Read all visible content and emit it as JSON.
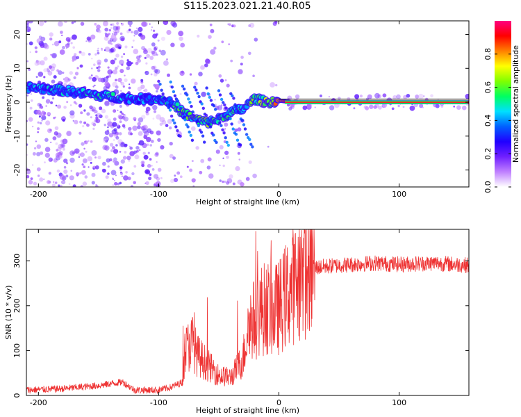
{
  "title": "S115.2023.021.21.40.R05",
  "chart_data": [
    {
      "type": "heatmap",
      "xlabel": "Height of straight line (km)",
      "ylabel": "Frequency (Hz)",
      "xlim": [
        -210,
        158
      ],
      "ylim": [
        -25,
        24
      ],
      "xticks": [
        -200,
        -100,
        0,
        100
      ],
      "yticks": [
        -20,
        -10,
        0,
        10,
        20
      ],
      "colorbar": {
        "label": "Normalized spectral amplitude",
        "range": [
          0,
          1
        ],
        "ticks": [
          "0.0",
          "0.2",
          "0.4",
          "0.6",
          "0.8"
        ],
        "colors": [
          "#ffffff",
          "#c080ff",
          "#7020ff",
          "#2000ff",
          "#0060ff",
          "#00e0ff",
          "#00ff60",
          "#80ff00",
          "#ffff00",
          "#ff8000",
          "#ff0000",
          "#ff0080"
        ]
      },
      "ridge": {
        "x": [
          -210,
          -180,
          -150,
          -120,
          -100,
          -90,
          -80,
          -70,
          -60,
          -50,
          -40,
          -30,
          -20,
          -10,
          0,
          10,
          50,
          100,
          158
        ],
        "y": [
          4.5,
          3.5,
          2.0,
          1.0,
          1.0,
          0.0,
          -3.0,
          -5.0,
          -6.0,
          -5.0,
          -3.0,
          -2.0,
          1.0,
          0.0,
          0.5,
          0.0,
          0.0,
          0.0,
          0.0
        ],
        "z": [
          0.35,
          0.4,
          0.45,
          0.35,
          0.4,
          0.45,
          0.5,
          0.55,
          0.55,
          0.5,
          0.45,
          0.5,
          0.55,
          0.6,
          0.8,
          0.95,
          0.95,
          0.95,
          0.95
        ]
      }
    },
    {
      "type": "line",
      "xlabel": "Height of straight line (km)",
      "ylabel": "SNR (10 * v/v)",
      "xlim": [
        -210,
        158
      ],
      "ylim": [
        0,
        370
      ],
      "xticks": [
        -200,
        -100,
        0,
        100
      ],
      "yticks": [
        0,
        100,
        200,
        300
      ],
      "series": [
        {
          "color": "#ee3333",
          "x": [
            -210,
            -180,
            -150,
            -130,
            -120,
            -100,
            -90,
            -80,
            -78,
            -72,
            -68,
            -60,
            -50,
            -40,
            -30,
            -25,
            -20,
            -15,
            -10,
            -5,
            0,
            10,
            20,
            30,
            50,
            80,
            100,
            130,
            158
          ],
          "y": [
            12,
            15,
            22,
            30,
            12,
            12,
            18,
            30,
            100,
            120,
            90,
            70,
            45,
            40,
            80,
            160,
            170,
            190,
            195,
            190,
            195,
            240,
            270,
            285,
            290,
            295,
            292,
            295,
            290
          ]
        }
      ]
    }
  ]
}
